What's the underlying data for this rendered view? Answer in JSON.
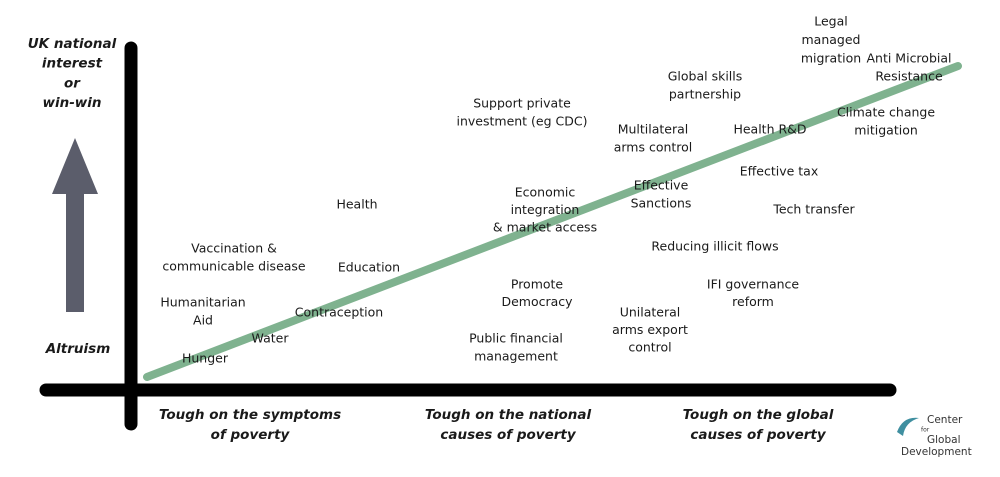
{
  "y_axis": {
    "top_label": [
      "UK national",
      "interest",
      "or",
      "win-win"
    ],
    "bottom_label": "Altruism"
  },
  "x_axis": {
    "labels": [
      [
        "Tough on the symptoms",
        "of poverty"
      ],
      [
        "Tough on the national",
        "causes of poverty"
      ],
      [
        "Tough on the global",
        "causes of poverty"
      ]
    ]
  },
  "items": [
    [
      "Legal",
      "managed",
      "migration"
    ],
    [
      "Anti Microbial",
      "Resistance"
    ],
    [
      "Global skills",
      "partnership"
    ],
    [
      "Support private",
      "investment (eg CDC)"
    ],
    [
      "Multilateral",
      "arms control"
    ],
    [
      "Health R&D"
    ],
    [
      "Climate change",
      "mitigation"
    ],
    [
      "Effective tax"
    ],
    [
      "Economic",
      "integration",
      "& market access"
    ],
    [
      "Effective",
      "Sanctions"
    ],
    [
      "Health"
    ],
    [
      "Tech transfer"
    ],
    [
      "Vaccination &",
      "communicable disease"
    ],
    [
      "Reducing illicit flows"
    ],
    [
      "Education"
    ],
    [
      "Promote",
      "Democracy"
    ],
    [
      "IFI governance",
      "reform"
    ],
    [
      "Humanitarian",
      "Aid"
    ],
    [
      "Contraception"
    ],
    [
      "Unilateral",
      "arms export",
      "control"
    ],
    [
      "Public financial",
      "management"
    ],
    [
      "Water"
    ],
    [
      "Hunger"
    ]
  ],
  "logo": [
    "Center",
    "for",
    "Global",
    "Development"
  ]
}
